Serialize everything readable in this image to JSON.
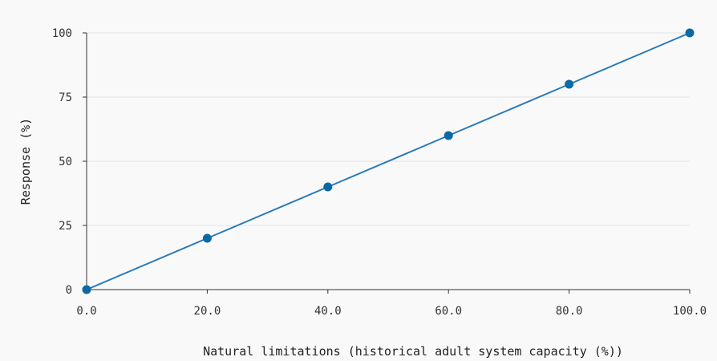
{
  "chart_data": {
    "type": "line",
    "title": "",
    "xlabel": "Natural limitations (historical adult system capacity (%))",
    "ylabel": "Response (%)",
    "x": [
      0.0,
      20.0,
      40.0,
      60.0,
      80.0,
      100.0
    ],
    "x_tick_labels": [
      "0.0",
      "20.0",
      "40.0",
      "60.0",
      "80.0",
      "100.0"
    ],
    "y_ticks": [
      0,
      25,
      50,
      75,
      100
    ],
    "y_tick_labels": [
      "0",
      "25",
      "50",
      "75",
      "100"
    ],
    "xlim": [
      0,
      100
    ],
    "ylim": [
      0,
      100
    ],
    "grid": "horizontal",
    "legend": "none",
    "series": [
      {
        "values": [
          0,
          20,
          40,
          60,
          80,
          100
        ],
        "color": "#1f77b4"
      }
    ]
  },
  "colors": {
    "background": "#f9f9f9",
    "gridline": "#e3e3e3",
    "axis": "#333333",
    "series_line": "#2a7ab8",
    "series_marker": "#0b6aa6"
  }
}
